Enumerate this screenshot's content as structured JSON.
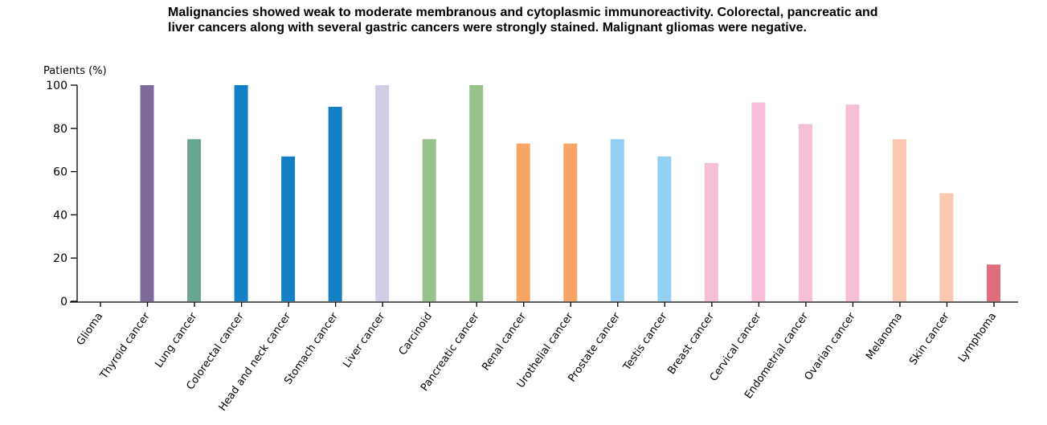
{
  "chart_data": {
    "type": "bar",
    "title": "Malignancies showed weak to moderate membranous and cytoplasmic immunoreactivity. Colorectal, pancreatic and liver cancers along with several gastric cancers were strongly stained. Malignant gliomas were negative.",
    "ylabel": "Patients (%)",
    "xlabel": "",
    "ylim": [
      0,
      100
    ],
    "yticks": [
      0,
      20,
      40,
      60,
      80,
      100
    ],
    "grid": false,
    "categories": [
      "Glioma",
      "Thyroid cancer",
      "Lung cancer",
      "Colorectal cancer",
      "Head and neck cancer",
      "Stomach cancer",
      "Liver cancer",
      "Carcinoid",
      "Pancreatic cancer",
      "Renal cancer",
      "Urothelial cancer",
      "Prostate cancer",
      "Testis cancer",
      "Breast cancer",
      "Cervical cancer",
      "Endometrial cancer",
      "Ovarian cancer",
      "Melanoma",
      "Skin cancer",
      "Lymphoma"
    ],
    "values": [
      0,
      100,
      75,
      100,
      67,
      90,
      100,
      75,
      100,
      73,
      73,
      75,
      67,
      64,
      92,
      82,
      91,
      75,
      50,
      17
    ],
    "colors": [
      "#7f6b9a",
      "#7f6b9a",
      "#6ba591",
      "#1380c6",
      "#1380c6",
      "#1380c6",
      "#d2cde6",
      "#98c28c",
      "#98c28c",
      "#f7a466",
      "#f7a466",
      "#94d0f4",
      "#94d0f4",
      "#f7bed8",
      "#f7bed8",
      "#f7bed8",
      "#f7bed8",
      "#fbc9b2",
      "#fbc9b2",
      "#df6d7d"
    ]
  }
}
